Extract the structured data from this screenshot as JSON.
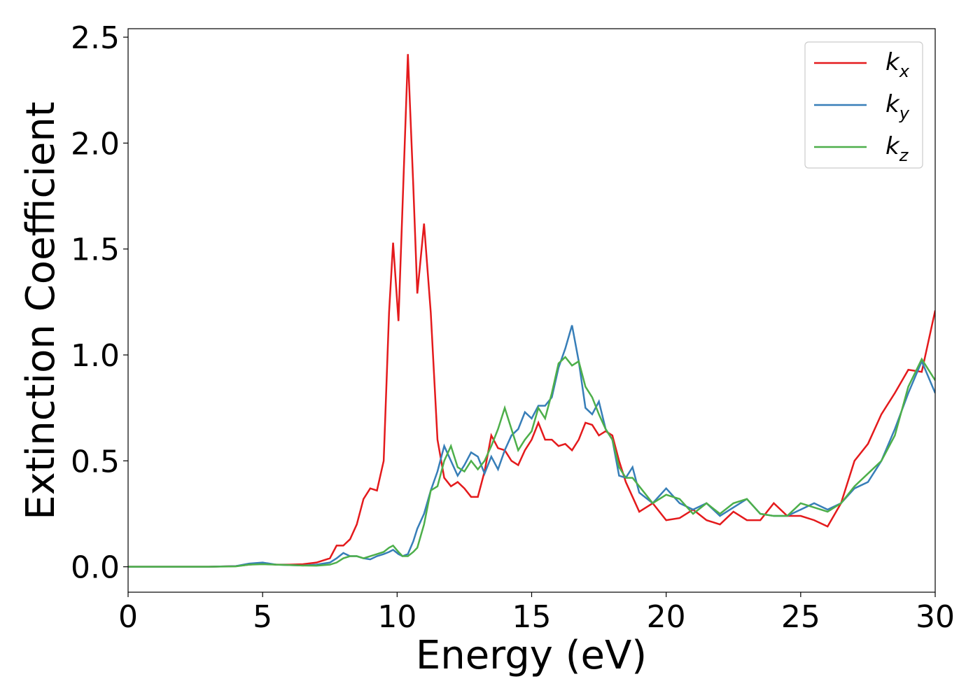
{
  "chart_data": {
    "type": "line",
    "xlabel": "Energy (eV)",
    "ylabel": "Extinction Coefficient",
    "xlim": [
      0,
      30
    ],
    "ylim": [
      -0.12,
      2.54
    ],
    "xticks": [
      0,
      5,
      10,
      15,
      20,
      25,
      30
    ],
    "yticks": [
      {
        "value": 0,
        "label": "0.0"
      },
      0.5,
      {
        "value": 1,
        "label": "1.0"
      },
      1.5,
      {
        "value": 2,
        "label": "2.0"
      },
      2.5
    ],
    "legend": "upper right",
    "x": [
      0,
      1,
      2,
      3,
      4,
      4.5,
      5,
      5.5,
      6,
      6.5,
      7,
      7.5,
      7.75,
      8,
      8.25,
      8.5,
      8.75,
      9,
      9.25,
      9.5,
      9.7,
      9.85,
      10.05,
      10.2,
      10.4,
      10.6,
      10.75,
      11,
      11.25,
      11.5,
      11.75,
      12,
      12.25,
      12.5,
      12.75,
      13,
      13.25,
      13.5,
      13.75,
      14,
      14.25,
      14.5,
      14.75,
      15,
      15.25,
      15.5,
      15.75,
      16,
      16.25,
      16.5,
      16.75,
      17,
      17.25,
      17.5,
      17.75,
      18,
      18.25,
      18.5,
      18.75,
      19,
      19.5,
      20,
      20.5,
      21,
      21.5,
      22,
      22.5,
      23,
      23.5,
      24,
      24.5,
      25,
      25.5,
      26,
      26.5,
      27,
      27.5,
      28,
      28.5,
      29,
      29.5,
      30
    ],
    "series": [
      {
        "name": "kx",
        "color": "#e41a1c",
        "values": [
          0,
          0,
          0,
          0,
          0.003,
          0.01,
          0.015,
          0.01,
          0.01,
          0.012,
          0.02,
          0.04,
          0.1,
          0.1,
          0.13,
          0.2,
          0.32,
          0.37,
          0.36,
          0.5,
          1.2,
          1.53,
          1.16,
          1.7,
          2.42,
          1.8,
          1.29,
          1.62,
          1.2,
          0.6,
          0.42,
          0.38,
          0.4,
          0.37,
          0.33,
          0.33,
          0.45,
          0.62,
          0.56,
          0.55,
          0.5,
          0.48,
          0.55,
          0.6,
          0.68,
          0.6,
          0.6,
          0.57,
          0.58,
          0.55,
          0.6,
          0.68,
          0.67,
          0.62,
          0.64,
          0.62,
          0.5,
          0.4,
          0.33,
          0.26,
          0.3,
          0.22,
          0.23,
          0.27,
          0.22,
          0.2,
          0.26,
          0.22,
          0.22,
          0.3,
          0.24,
          0.24,
          0.22,
          0.19,
          0.3,
          0.5,
          0.58,
          0.72,
          0.82,
          0.93,
          0.92,
          1.21
        ]
      },
      {
        "name": "ky",
        "color": "#377eb8",
        "values": [
          0,
          0,
          0,
          0,
          0.003,
          0.015,
          0.02,
          0.01,
          0.008,
          0.006,
          0.01,
          0.02,
          0.04,
          0.065,
          0.05,
          0.05,
          0.04,
          0.035,
          0.05,
          0.06,
          0.07,
          0.08,
          0.06,
          0.05,
          0.06,
          0.12,
          0.18,
          0.25,
          0.36,
          0.45,
          0.57,
          0.5,
          0.43,
          0.48,
          0.54,
          0.52,
          0.44,
          0.52,
          0.46,
          0.55,
          0.62,
          0.65,
          0.73,
          0.7,
          0.76,
          0.76,
          0.8,
          0.94,
          1.03,
          1.14,
          0.97,
          0.75,
          0.72,
          0.78,
          0.65,
          0.6,
          0.43,
          0.42,
          0.47,
          0.35,
          0.3,
          0.37,
          0.3,
          0.27,
          0.3,
          0.24,
          0.28,
          0.32,
          0.25,
          0.24,
          0.24,
          0.27,
          0.3,
          0.27,
          0.3,
          0.37,
          0.4,
          0.5,
          0.65,
          0.82,
          0.97,
          0.82
        ]
      },
      {
        "name": "kz",
        "color": "#4daf4a",
        "values": [
          0,
          0,
          0,
          0,
          0.002,
          0.01,
          0.012,
          0.01,
          0.008,
          0.006,
          0.005,
          0.01,
          0.02,
          0.04,
          0.05,
          0.05,
          0.04,
          0.05,
          0.06,
          0.07,
          0.09,
          0.1,
          0.07,
          0.05,
          0.05,
          0.07,
          0.09,
          0.2,
          0.36,
          0.38,
          0.5,
          0.57,
          0.47,
          0.45,
          0.5,
          0.46,
          0.5,
          0.57,
          0.65,
          0.75,
          0.65,
          0.55,
          0.6,
          0.64,
          0.75,
          0.7,
          0.82,
          0.96,
          0.99,
          0.95,
          0.97,
          0.85,
          0.8,
          0.72,
          0.65,
          0.6,
          0.47,
          0.42,
          0.42,
          0.38,
          0.3,
          0.34,
          0.32,
          0.25,
          0.3,
          0.25,
          0.3,
          0.32,
          0.25,
          0.24,
          0.24,
          0.3,
          0.28,
          0.26,
          0.3,
          0.38,
          0.44,
          0.5,
          0.62,
          0.85,
          0.98,
          0.88
        ]
      }
    ]
  }
}
